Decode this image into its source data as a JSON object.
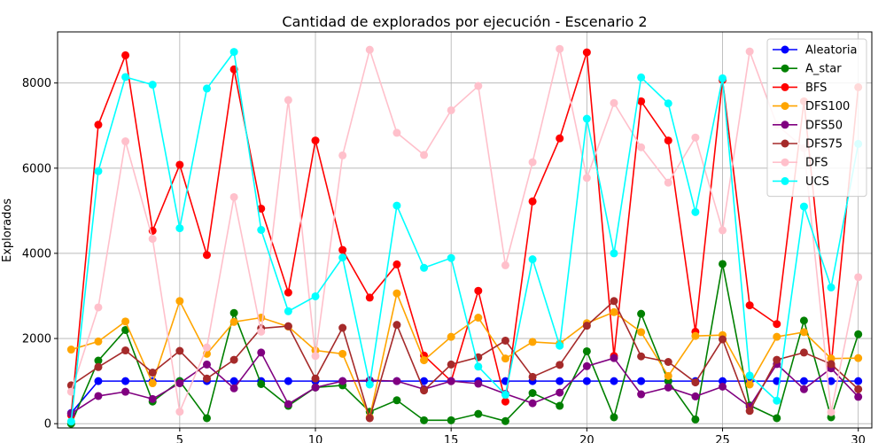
{
  "chart_data": {
    "type": "line",
    "title": "Cantidad de explorados por ejecución - Escenario 2",
    "xlabel": "",
    "ylabel": "Explorados",
    "xlim": [
      0.5,
      30.5
    ],
    "ylim": [
      -100,
      9200
    ],
    "xticks": [
      5,
      10,
      15,
      20,
      25,
      30
    ],
    "yticks": [
      0,
      2000,
      4000,
      6000,
      8000
    ],
    "grid": true,
    "legend_position": "top-right",
    "x": [
      1,
      2,
      3,
      4,
      5,
      6,
      7,
      8,
      9,
      10,
      11,
      12,
      13,
      14,
      15,
      16,
      17,
      18,
      19,
      20,
      21,
      22,
      23,
      24,
      25,
      26,
      27,
      28,
      29,
      30
    ],
    "series": [
      {
        "name": "Aleatoria",
        "color": "#0000ff",
        "values": [
          250,
          1000,
          1000,
          1000,
          1000,
          1000,
          1000,
          1000,
          1000,
          1000,
          1000,
          1000,
          1000,
          1000,
          1000,
          1000,
          1000,
          1000,
          1000,
          1000,
          1000,
          1000,
          1000,
          1000,
          1000,
          1000,
          1000,
          1000,
          1000,
          1000
        ]
      },
      {
        "name": "A_star",
        "color": "#008000",
        "values": [
          0,
          1480,
          2200,
          520,
          1000,
          130,
          2600,
          930,
          420,
          850,
          900,
          280,
          550,
          80,
          80,
          230,
          60,
          720,
          420,
          1700,
          150,
          2580,
          1000,
          100,
          3750,
          430,
          130,
          2420,
          150,
          2100
        ]
      },
      {
        "name": "BFS",
        "color": "#ff0000",
        "values": [
          200,
          7020,
          8650,
          4530,
          6080,
          3960,
          8320,
          5050,
          3080,
          6650,
          4080,
          2960,
          3740,
          1600,
          1000,
          3120,
          520,
          5220,
          6700,
          8720,
          1590,
          7570,
          6650,
          2160,
          8070,
          2780,
          2340,
          7570,
          1350,
          7900
        ]
      },
      {
        "name": "DFS100",
        "color": "#ffa500",
        "values": [
          1740,
          1930,
          2400,
          950,
          2880,
          1640,
          2390,
          2490,
          2280,
          1720,
          1640,
          150,
          3060,
          1490,
          2040,
          2490,
          1530,
          1920,
          1880,
          2360,
          2620,
          2150,
          1120,
          2060,
          2080,
          920,
          2040,
          2150,
          1530,
          1540
        ]
      },
      {
        "name": "DFS50",
        "color": "#800080",
        "values": [
          240,
          650,
          750,
          580,
          950,
          1390,
          830,
          1670,
          460,
          850,
          1000,
          1020,
          1000,
          810,
          1000,
          940,
          700,
          480,
          730,
          1350,
          1540,
          690,
          850,
          640,
          870,
          400,
          1400,
          810,
          1300,
          630
        ]
      },
      {
        "name": "DFS75",
        "color": "#a52a2a",
        "values": [
          900,
          1330,
          1720,
          1200,
          1710,
          1060,
          1500,
          2240,
          2290,
          1060,
          2250,
          130,
          2320,
          780,
          1390,
          1560,
          1950,
          1100,
          1380,
          2300,
          2880,
          1580,
          1450,
          970,
          1980,
          300,
          1500,
          1670,
          1400,
          810
        ]
      },
      {
        "name": "DFS",
        "color": "#ffc0cb",
        "values": [
          750,
          2730,
          6630,
          4340,
          280,
          1790,
          5320,
          2160,
          7600,
          1590,
          6300,
          8780,
          6830,
          6310,
          7360,
          7930,
          3720,
          6140,
          8800,
          5770,
          7530,
          6490,
          5660,
          6720,
          4540,
          8740,
          7020,
          6470,
          270,
          3440
        ]
      },
      {
        "name": "UCS",
        "color": "#00ffff",
        "values": [
          50,
          5930,
          8140,
          7960,
          4590,
          7870,
          8730,
          4550,
          2640,
          2990,
          3900,
          920,
          5120,
          3660,
          3890,
          1340,
          680,
          3860,
          1830,
          7160,
          4000,
          8130,
          7520,
          4970,
          8110,
          1130,
          540,
          5100,
          3200,
          6570
        ]
      }
    ]
  }
}
